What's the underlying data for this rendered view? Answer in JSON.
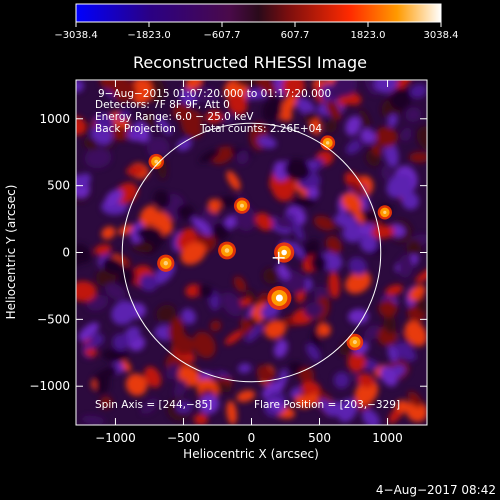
{
  "chart_data": {
    "type": "heatmap",
    "title": "Reconstructed RHESSI Image",
    "xlabel": "Heliocentric X (arcsec)",
    "ylabel": "Heliocentric Y (arcsec)",
    "xlim": [
      -1290,
      1290
    ],
    "ylim": [
      -1290,
      1290
    ],
    "xticks": [
      -1000,
      -500,
      0,
      500,
      1000
    ],
    "xtick_labels": [
      "−1000",
      "−500",
      "0",
      "500",
      "1000"
    ],
    "yticks": [
      -1000,
      -500,
      0,
      500,
      1000
    ],
    "ytick_labels": [
      "−1000",
      "−500",
      "0",
      "500",
      "1000"
    ],
    "colorbar": {
      "range": [
        -3038.4,
        3038.4
      ],
      "ticks": [
        -3038.4,
        -1823.0,
        -607.7,
        607.7,
        1823.0,
        3038.4
      ],
      "tick_labels": [
        "−3038.4",
        "−1823.0",
        "−607.7",
        "607.7",
        "1823.0",
        "3038.4"
      ]
    },
    "solar_limb_radius_arcsec": 950,
    "flare_marker": [
      200,
      -40
    ],
    "bright_sources": [
      {
        "x": 205,
        "y": -340,
        "value": 3038.4
      },
      {
        "x": 240,
        "y": 0,
        "value": 2400
      },
      {
        "x": -180,
        "y": 15,
        "value": 2000
      },
      {
        "x": -630,
        "y": -80,
        "value": 1900
      },
      {
        "x": -70,
        "y": 350,
        "value": 1700
      },
      {
        "x": 760,
        "y": -670,
        "value": 1800
      },
      {
        "x": -700,
        "y": 680,
        "value": 1600
      },
      {
        "x": 560,
        "y": 820,
        "value": 1500
      },
      {
        "x": 980,
        "y": 300,
        "value": 1400
      }
    ],
    "annotations": {
      "time_range": "9−Aug−2015 01:07:20.000 to 01:17:20.000",
      "detectors": "Detectors: 7F 8F 9F, Att 0",
      "energy_range": "Energy Range: 6.0 − 25.0 keV",
      "method": "Back Projection",
      "total_counts": "Total counts: 2.26E+04",
      "spin_axis": "Spin Axis = [244,−85]",
      "flare_position": "Flare Position = [203,−329]"
    }
  },
  "footer": {
    "timestamp": "4−Aug−2017 08:42"
  }
}
